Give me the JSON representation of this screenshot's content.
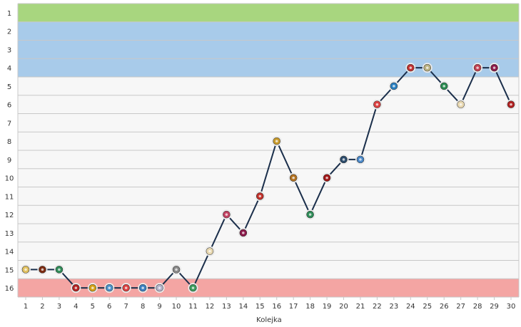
{
  "chart_data": {
    "type": "line",
    "xlabel": "Kolejka",
    "ylabel": "",
    "x": [
      1,
      2,
      3,
      4,
      5,
      6,
      7,
      8,
      9,
      10,
      11,
      12,
      13,
      14,
      15,
      16,
      17,
      18,
      19,
      20,
      21,
      22,
      23,
      24,
      25,
      26,
      27,
      28,
      29,
      30
    ],
    "y_ticks": [
      1,
      2,
      3,
      4,
      5,
      6,
      7,
      8,
      9,
      10,
      11,
      12,
      13,
      14,
      15,
      16
    ],
    "ylim": [
      1,
      16
    ],
    "y_inverted": true,
    "zones": [
      {
        "from": 1,
        "to": 1,
        "color": "#a8d67f"
      },
      {
        "from": 2,
        "to": 4,
        "color": "#a8cbea"
      },
      {
        "from": 16,
        "to": 16,
        "color": "#f4a5a3"
      }
    ],
    "series": [
      {
        "color": "#1b2f4b",
        "values": [
          15,
          15,
          15,
          16,
          16,
          16,
          16,
          16,
          16,
          15,
          16,
          14,
          12,
          13,
          11,
          8,
          10,
          12,
          10,
          9,
          9,
          6,
          5,
          4,
          4,
          5,
          6,
          4,
          4,
          6
        ]
      }
    ],
    "marker_colors": [
      "#e0c060",
      "#7a2a10",
      "#2e8b57",
      "#b22222",
      "#d4a017",
      "#4a90c8",
      "#d94040",
      "#3a7fc0",
      "#b0b0c8",
      "#888888",
      "#3a9a5a",
      "#e8d8b0",
      "#c04060",
      "#8b1a4a",
      "#c0302a",
      "#c89a2a",
      "#b07020",
      "#2e8b57",
      "#a01818",
      "#2a4a6a",
      "#4a88c8",
      "#d94040",
      "#2a7fc0",
      "#c03030",
      "#b8b080",
      "#2a8a50",
      "#e8d8b0",
      "#c04050",
      "#8b1a4a",
      "#b02020"
    ],
    "grid": true,
    "legend": "none"
  }
}
